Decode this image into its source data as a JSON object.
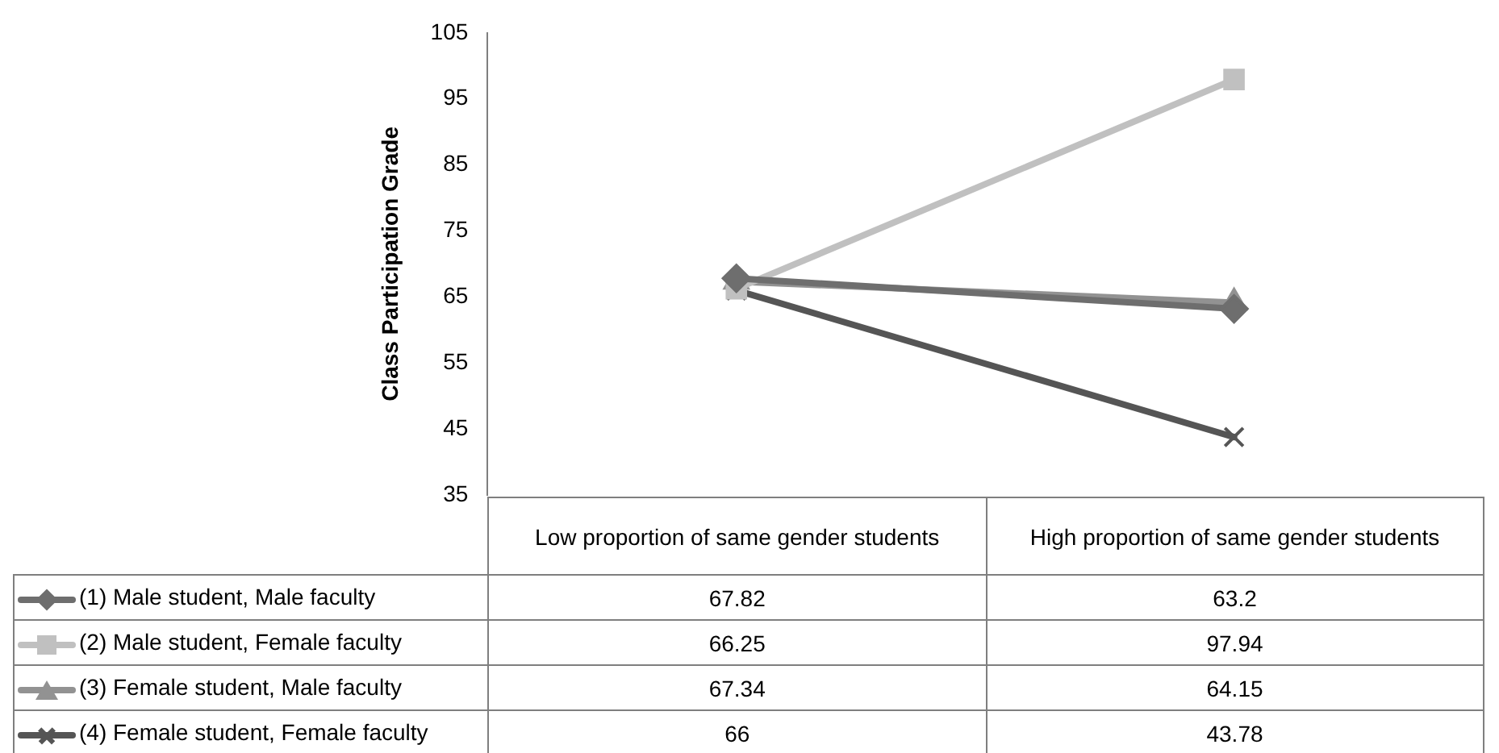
{
  "chart_data": {
    "type": "line",
    "ylabel": "Class Participation Grade",
    "categories": [
      "Low proportion of same gender students",
      "High proportion of same gender students"
    ],
    "series": [
      {
        "name": "(1) Male student, Male faculty",
        "color": "#6e6e6e",
        "values": [
          67.82,
          63.2
        ],
        "marker": "diamond"
      },
      {
        "name": "(2) Male student, Female faculty",
        "color": "#c0c0c0",
        "values": [
          66.25,
          97.94
        ],
        "marker": "square"
      },
      {
        "name": "(3) Female student, Male faculty",
        "color": "#929292",
        "values": [
          67.34,
          64.15
        ],
        "marker": "triangle"
      },
      {
        "name": "(4) Female student, Female faculty",
        "color": "#555555",
        "values": [
          66,
          43.78
        ],
        "marker": "cross"
      }
    ],
    "ylim": [
      35,
      105
    ],
    "yticks": [
      35,
      45,
      55,
      65,
      75,
      85,
      95,
      105
    ],
    "grid": false,
    "legend": "bottom",
    "data_labels": true,
    "line_style": "solid"
  }
}
